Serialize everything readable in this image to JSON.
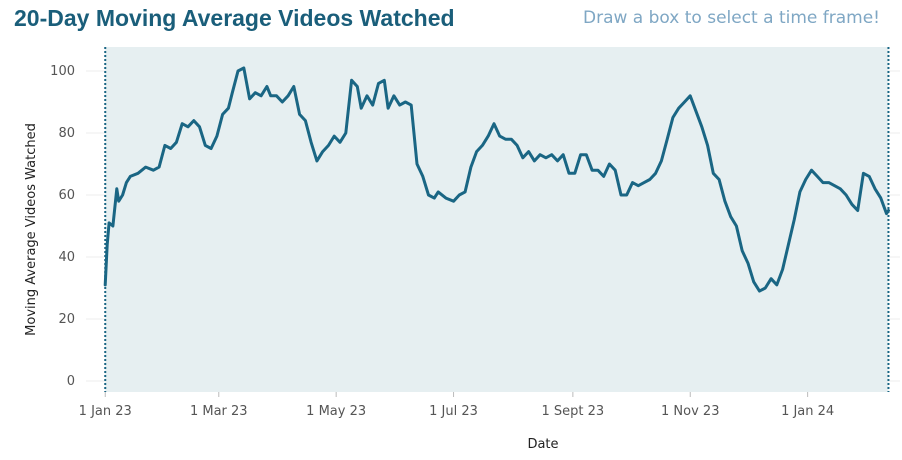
{
  "header": {
    "title": "20-Day Moving Average Videos Watched",
    "hint": "Draw a box to select a time frame!"
  },
  "colors": {
    "line": "#1a6684",
    "title": "#1a5e7a",
    "hint": "#7fa7c4",
    "selection_fill": "#e6eff1",
    "selection_border": "#1a6684"
  },
  "chart_data": {
    "type": "line",
    "xlabel": "Date",
    "ylabel": "Moving Average Videos Watched",
    "ylim": [
      0,
      103
    ],
    "y_ticks": [
      0,
      20,
      40,
      60,
      80,
      100
    ],
    "x_ticks": [
      {
        "date": "2023-01-01",
        "label": "1 Jan 23"
      },
      {
        "date": "2023-03-01",
        "label": "1 Mar 23"
      },
      {
        "date": "2023-05-01",
        "label": "1 May 23"
      },
      {
        "date": "2023-07-01",
        "label": "1 Jul 23"
      },
      {
        "date": "2023-09-01",
        "label": "1 Sept 23"
      },
      {
        "date": "2023-11-01",
        "label": "1 Nov 23"
      },
      {
        "date": "2024-01-01",
        "label": "1 Jan 24"
      }
    ],
    "xlim": [
      "2022-12-22",
      "2024-02-18"
    ],
    "selection": [
      "2023-01-01",
      "2024-02-12"
    ],
    "grid": true,
    "series": [
      {
        "x": [
          "2023-01-01",
          "2023-01-02",
          "2023-01-03",
          "2023-01-05",
          "2023-01-07",
          "2023-01-08",
          "2023-01-10",
          "2023-01-12",
          "2023-01-14",
          "2023-01-18",
          "2023-01-22",
          "2023-01-26",
          "2023-01-29",
          "2023-02-01",
          "2023-02-04",
          "2023-02-07",
          "2023-02-10",
          "2023-02-13",
          "2023-02-16",
          "2023-02-19",
          "2023-02-22",
          "2023-02-25",
          "2023-02-28",
          "2023-03-03",
          "2023-03-06",
          "2023-03-08",
          "2023-03-11",
          "2023-03-14",
          "2023-03-17",
          "2023-03-20",
          "2023-03-23",
          "2023-03-26",
          "2023-03-28",
          "2023-03-31",
          "2023-04-03",
          "2023-04-06",
          "2023-04-09",
          "2023-04-12",
          "2023-04-15",
          "2023-04-18",
          "2023-04-21",
          "2023-04-24",
          "2023-04-27",
          "2023-04-30",
          "2023-05-03",
          "2023-05-06",
          "2023-05-09",
          "2023-05-12",
          "2023-05-14",
          "2023-05-17",
          "2023-05-20",
          "2023-05-23",
          "2023-05-26",
          "2023-05-28",
          "2023-05-31",
          "2023-06-03",
          "2023-06-06",
          "2023-06-09",
          "2023-06-12",
          "2023-06-15",
          "2023-06-18",
          "2023-06-21",
          "2023-06-23",
          "2023-06-27",
          "2023-07-01",
          "2023-07-04",
          "2023-07-07",
          "2023-07-10",
          "2023-07-13",
          "2023-07-16",
          "2023-07-19",
          "2023-07-22",
          "2023-07-25",
          "2023-07-28",
          "2023-07-31",
          "2023-08-03",
          "2023-08-06",
          "2023-08-09",
          "2023-08-12",
          "2023-08-15",
          "2023-08-18",
          "2023-08-21",
          "2023-08-24",
          "2023-08-27",
          "2023-08-30",
          "2023-09-02",
          "2023-09-05",
          "2023-09-08",
          "2023-09-11",
          "2023-09-14",
          "2023-09-17",
          "2023-09-20",
          "2023-09-23",
          "2023-09-26",
          "2023-09-29",
          "2023-10-02",
          "2023-10-05",
          "2023-10-08",
          "2023-10-11",
          "2023-10-14",
          "2023-10-17",
          "2023-10-20",
          "2023-10-23",
          "2023-10-26",
          "2023-10-29",
          "2023-11-01",
          "2023-11-04",
          "2023-11-07",
          "2023-11-10",
          "2023-11-13",
          "2023-11-16",
          "2023-11-19",
          "2023-11-22",
          "2023-11-25",
          "2023-11-28",
          "2023-12-01",
          "2023-12-04",
          "2023-12-07",
          "2023-12-10",
          "2023-12-13",
          "2023-12-16",
          "2023-12-19",
          "2023-12-22",
          "2023-12-25",
          "2023-12-28",
          "2023-12-31",
          "2024-01-03",
          "2024-01-06",
          "2024-01-09",
          "2024-01-12",
          "2024-01-15",
          "2024-01-18",
          "2024-01-21",
          "2024-01-24",
          "2024-01-27",
          "2024-01-30",
          "2024-02-02",
          "2024-02-05",
          "2024-02-08",
          "2024-02-11",
          "2024-02-12"
        ],
        "y": [
          31,
          44,
          51,
          50,
          62,
          58,
          60,
          64,
          66,
          67,
          69,
          68,
          69,
          76,
          75,
          77,
          83,
          82,
          84,
          82,
          76,
          75,
          79,
          86,
          88,
          93,
          100,
          101,
          91,
          93,
          92,
          95,
          92,
          92,
          90,
          92,
          95,
          86,
          84,
          77,
          71,
          74,
          76,
          79,
          77,
          80,
          97,
          95,
          88,
          92,
          89,
          96,
          97,
          88,
          92,
          89,
          90,
          89,
          70,
          66,
          60,
          59,
          61,
          59,
          58,
          60,
          61,
          69,
          74,
          76,
          79,
          83,
          79,
          78,
          78,
          76,
          72,
          74,
          71,
          73,
          72,
          73,
          71,
          73,
          67,
          67,
          73,
          73,
          68,
          68,
          66,
          70,
          68,
          60,
          60,
          64,
          63,
          64,
          65,
          67,
          71,
          78,
          85,
          88,
          90,
          92,
          87,
          82,
          76,
          67,
          65,
          58,
          53,
          50,
          42,
          38,
          32,
          29,
          30,
          33,
          31,
          36,
          44,
          52,
          61,
          65,
          68,
          66,
          64,
          64,
          63,
          62,
          60,
          57,
          55,
          67,
          66,
          62,
          59,
          54,
          55
        ]
      }
    ]
  }
}
